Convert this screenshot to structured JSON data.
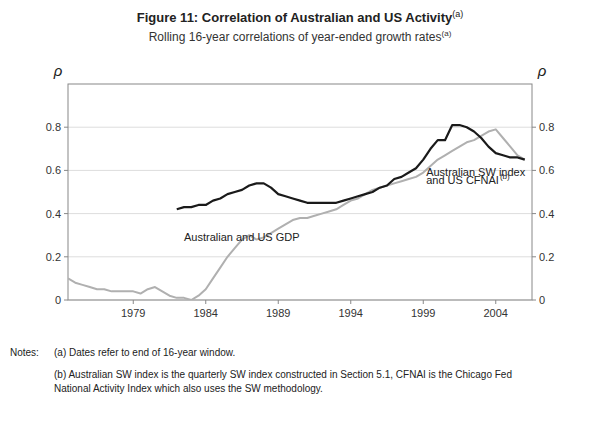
{
  "chart_data": {
    "type": "line",
    "title": "Figure 11: Correlation of Australian and US Activity",
    "title_note": "(a)",
    "subtitle": "Rolling 16-year correlations of year-ended growth rates",
    "subtitle_note": "(a)",
    "ylabel": "ρ",
    "y2label": "ρ",
    "xlim": [
      1974.5,
      2006.5
    ],
    "xticks": [
      1979,
      1984,
      1989,
      1994,
      1999,
      2004
    ],
    "ylim": [
      0,
      1.0
    ],
    "yticks": [
      0,
      0.2,
      0.4,
      0.6,
      0.8
    ],
    "y2lim": [
      0,
      1.0
    ],
    "y2ticks": [
      0,
      0.2,
      0.4,
      0.6,
      0.8
    ],
    "grid": true,
    "series": [
      {
        "name": "Australian and US GDP",
        "color": "#b0b0b0",
        "x": [
          1974.5,
          1975.0,
          1975.5,
          1976.0,
          1976.5,
          1977.0,
          1977.5,
          1978.0,
          1978.5,
          1979.0,
          1979.5,
          1980.0,
          1980.5,
          1981.0,
          1981.5,
          1982.0,
          1982.5,
          1983.0,
          1983.5,
          1984.0,
          1984.5,
          1985.0,
          1985.5,
          1986.0,
          1986.5,
          1987.0,
          1987.5,
          1988.0,
          1988.5,
          1989.0,
          1989.5,
          1990.0,
          1990.5,
          1991.0,
          1991.5,
          1992.0,
          1992.5,
          1993.0,
          1993.5,
          1994.0,
          1994.5,
          1995.0,
          1995.5,
          1996.0,
          1996.5,
          1997.0,
          1997.5,
          1998.0,
          1998.5,
          1999.0,
          1999.5,
          2000.0,
          2000.5,
          2001.0,
          2001.5,
          2002.0,
          2002.5,
          2003.0,
          2003.5,
          2004.0,
          2004.5,
          2005.0,
          2005.5,
          2006.0
        ],
        "values": [
          0.1,
          0.08,
          0.07,
          0.06,
          0.05,
          0.05,
          0.04,
          0.04,
          0.04,
          0.04,
          0.03,
          0.05,
          0.06,
          0.04,
          0.02,
          0.01,
          0.01,
          0.0,
          0.02,
          0.05,
          0.1,
          0.15,
          0.2,
          0.24,
          0.28,
          0.3,
          0.28,
          0.29,
          0.31,
          0.33,
          0.35,
          0.37,
          0.38,
          0.38,
          0.39,
          0.4,
          0.41,
          0.42,
          0.44,
          0.46,
          0.47,
          0.49,
          0.51,
          0.52,
          0.53,
          0.54,
          0.55,
          0.56,
          0.57,
          0.59,
          0.62,
          0.65,
          0.67,
          0.69,
          0.71,
          0.73,
          0.74,
          0.76,
          0.78,
          0.79,
          0.75,
          0.71,
          0.67,
          0.65
        ]
      },
      {
        "name": "Australian SW index and US CFNAI",
        "color": "#1a1a1a",
        "x": [
          1982.0,
          1982.5,
          1983.0,
          1983.5,
          1984.0,
          1984.5,
          1985.0,
          1985.5,
          1986.0,
          1986.5,
          1987.0,
          1987.5,
          1988.0,
          1988.5,
          1989.0,
          1989.5,
          1990.0,
          1990.5,
          1991.0,
          1991.5,
          1992.0,
          1992.5,
          1993.0,
          1993.5,
          1994.0,
          1994.5,
          1995.0,
          1995.5,
          1996.0,
          1996.5,
          1997.0,
          1997.5,
          1998.0,
          1998.5,
          1999.0,
          1999.5,
          2000.0,
          2000.5,
          2001.0,
          2001.5,
          2002.0,
          2002.5,
          2003.0,
          2003.5,
          2004.0,
          2004.5,
          2005.0,
          2005.5,
          2006.0
        ],
        "values": [
          0.42,
          0.43,
          0.43,
          0.44,
          0.44,
          0.46,
          0.47,
          0.49,
          0.5,
          0.51,
          0.53,
          0.54,
          0.54,
          0.52,
          0.49,
          0.48,
          0.47,
          0.46,
          0.45,
          0.45,
          0.45,
          0.45,
          0.45,
          0.46,
          0.47,
          0.48,
          0.49,
          0.5,
          0.52,
          0.53,
          0.56,
          0.57,
          0.59,
          0.61,
          0.65,
          0.7,
          0.74,
          0.74,
          0.81,
          0.81,
          0.8,
          0.78,
          0.75,
          0.71,
          0.68,
          0.67,
          0.66,
          0.66,
          0.65
        ]
      }
    ],
    "annotations": [
      {
        "text": "Australian and US GDP",
        "x": 1982.5,
        "y": 0.275
      },
      {
        "text": "Australian SW index",
        "x": 1999.2,
        "y": 0.575
      },
      {
        "text": "and US CFNAI",
        "superscript": "(b)",
        "x": 1999.2,
        "y": 0.535
      }
    ],
    "notes_heading": "Notes:",
    "notes": [
      "(a) Dates refer to end of 16-year window.",
      "(b) Australian SW index is the quarterly SW index constructed in Section 5.1, CFNAI is the Chicago Fed",
      "National Activity Index which also uses the SW methodology."
    ]
  }
}
